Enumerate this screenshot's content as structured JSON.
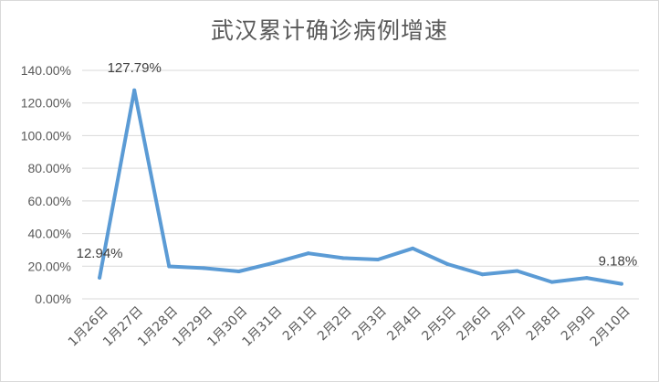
{
  "chart_data": {
    "type": "line",
    "title": "武汉累计确诊病例增速",
    "xlabel": "",
    "ylabel": "",
    "categories": [
      "1月26日",
      "1月27日",
      "1月28日",
      "1月29日",
      "1月30日",
      "1月31日",
      "2月1日",
      "2月2日",
      "2月3日",
      "2月4日",
      "2月5日",
      "2月6日",
      "2月7日",
      "2月8日",
      "2月9日",
      "2月10日"
    ],
    "series": [
      {
        "name": "",
        "values": [
          12.94,
          127.79,
          19.9,
          18.8,
          16.8,
          22.0,
          27.9,
          25.0,
          24.1,
          30.9,
          21.3,
          15.0,
          17.1,
          10.3,
          12.8,
          9.18
        ]
      }
    ],
    "ylim": [
      0,
      140
    ],
    "yticks": [
      "0.00%",
      "20.00%",
      "40.00%",
      "60.00%",
      "80.00%",
      "100.00%",
      "120.00%",
      "140.00%"
    ],
    "data_labels": [
      {
        "index": 0,
        "text": "12.94%"
      },
      {
        "index": 1,
        "text": "127.79%"
      },
      {
        "index": 15,
        "text": "9.18%"
      }
    ],
    "grid": true,
    "line_color": "#5b9bd5",
    "grid_color": "#d9d9d9"
  }
}
